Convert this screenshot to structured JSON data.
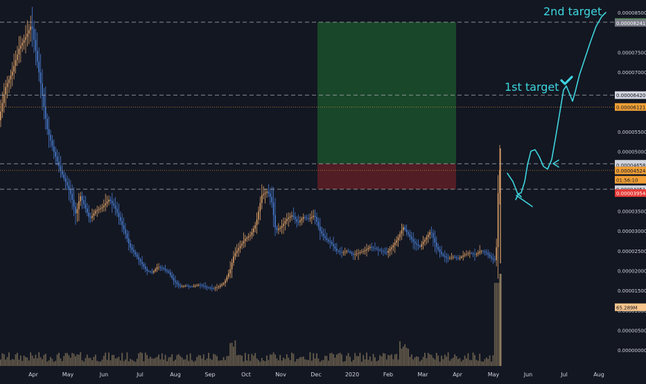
{
  "colors": {
    "background": "#131722",
    "candle_up": "#e3a468",
    "candle_down": "#4a7fd6",
    "volume": "#8c7a5e",
    "annotation": "#3ed6df",
    "target_zone": "#1b4d2a",
    "stop_zone": "#5a1e26",
    "hline": "#b2b5be",
    "orange_line": "#f19f36",
    "axis_text": "#d1d4dc"
  },
  "chart_data": {
    "type": "candlestick",
    "x_axis": {
      "ticks": [
        "Apr",
        "May",
        "Jun",
        "Jul",
        "Aug",
        "Sep",
        "Oct",
        "Nov",
        "Dec",
        "2020",
        "Feb",
        "Mar",
        "Apr",
        "May",
        "Jun",
        "Jul",
        "Aug"
      ]
    },
    "y_axis": {
      "range": [
        0,
        8.5e-06
      ],
      "ticks": [
        {
          "label": "0.00008500",
          "value": 8.5e-05
        },
        {
          "label": "0.00007500",
          "value": 7.5e-05
        },
        {
          "label": "0.00007000",
          "value": 7e-05
        },
        {
          "label": "0.00005500",
          "value": 5.5e-05
        },
        {
          "label": "0.00005000",
          "value": 5e-05
        },
        {
          "label": "0.00003500",
          "value": 3.5e-05
        },
        {
          "label": "0.00003000",
          "value": 3e-05
        },
        {
          "label": "0.00002500",
          "value": 2.5e-05
        },
        {
          "label": "0.00002000",
          "value": 2e-05
        },
        {
          "label": "0.00001500",
          "value": 1.5e-05
        },
        {
          "label": "0.00001000",
          "value": 1e-05
        },
        {
          "label": "0.00000500",
          "value": 5e-06
        },
        {
          "label": "0.00000000",
          "value": 0.0
        }
      ]
    },
    "price_labels": [
      {
        "label": "0.00008256",
        "value": 8.256e-05,
        "bg": "#4caf50",
        "fg": "#ffffff"
      },
      {
        "label": "0.00008241",
        "value": 8.241e-05,
        "bg": "#787b86",
        "fg": "#ffffff"
      },
      {
        "label": "0.00006420",
        "value": 6.42e-05,
        "bg": "#d1d4dc",
        "fg": "#131722"
      },
      {
        "label": "0.00006121",
        "value": 6.121e-05,
        "bg": "#f19f36",
        "fg": "#131722"
      },
      {
        "label": "0.00004692",
        "value": 4.692e-05,
        "bg": "#d1d4dc",
        "fg": "#131722"
      },
      {
        "label": "0.00004658",
        "value": 4.658e-05,
        "bg": "#d1d4dc",
        "fg": "#131722"
      },
      {
        "label": "0.00004524",
        "value": 4.524e-05,
        "bg": "#f19f36",
        "fg": "#131722"
      },
      {
        "label": "01:56:10",
        "value": 4.29e-05,
        "bg": "#f19f36",
        "fg": "#131722"
      },
      {
        "label": "0.00004051",
        "value": 4.051e-05,
        "bg": "#d1d4dc",
        "fg": "#131722"
      },
      {
        "label": "0.00003954",
        "value": 3.954e-05,
        "bg": "#e53935",
        "fg": "#ffffff"
      },
      {
        "label": "65.289M",
        "value": 1.08e-05,
        "bg": "#f7c48b",
        "fg": "#131722"
      }
    ],
    "horizontal_lines": [
      {
        "value": 8.256e-05,
        "style": "dashed"
      },
      {
        "value": 6.42e-05,
        "style": "dashed"
      },
      {
        "value": 6.121e-05,
        "style": "dotted-orange"
      },
      {
        "value": 4.692e-05,
        "style": "dashed"
      },
      {
        "value": 4.524e-05,
        "style": "dotted-orange"
      },
      {
        "value": 4.051e-05,
        "style": "dashed"
      }
    ],
    "position_tool": {
      "entry": 4.692e-05,
      "stop": 4.051e-05,
      "target": 8.256e-05,
      "from": "Dec",
      "to": "Apr"
    },
    "annotations": [
      {
        "text": "2nd target"
      },
      {
        "text": "1st target"
      }
    ]
  }
}
